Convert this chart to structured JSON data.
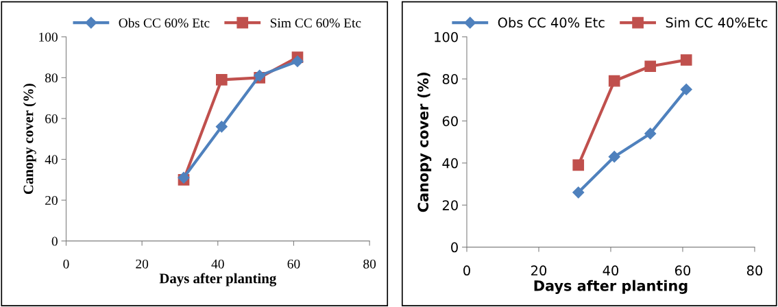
{
  "chart_data": [
    {
      "type": "line",
      "x": [
        31,
        41,
        51,
        61
      ],
      "xlabel": "Days after planting",
      "ylabel": "Canopy cover (%)",
      "xlim": [
        0,
        80
      ],
      "xticks": [
        0,
        20,
        40,
        60,
        80
      ],
      "ylim": [
        0,
        100
      ],
      "yticks": [
        0,
        20,
        40,
        60,
        80,
        100
      ],
      "grid": false,
      "legend": "top",
      "series": [
        {
          "name": "Obs CC 60% Etc",
          "color": "#4f81bd",
          "marker": "diamond",
          "values": [
            31,
            56,
            81,
            88
          ]
        },
        {
          "name": "Sim CC 60% Etc",
          "color": "#c0504d",
          "marker": "square",
          "values": [
            30,
            79,
            80,
            90
          ]
        }
      ]
    },
    {
      "type": "line",
      "x": [
        31,
        41,
        51,
        61
      ],
      "xlabel": "Days after planting",
      "ylabel": "Canopy cover (%)",
      "xlim": [
        0,
        80
      ],
      "xticks": [
        0,
        20,
        40,
        60,
        80
      ],
      "ylim": [
        0,
        100
      ],
      "yticks": [
        0,
        20,
        40,
        60,
        80,
        100
      ],
      "grid": false,
      "legend": "top",
      "series": [
        {
          "name": "Obs CC 40% Etc",
          "color": "#4f81bd",
          "marker": "diamond",
          "values": [
            26,
            43,
            54,
            75
          ]
        },
        {
          "name": "Sim CC 40%Etc",
          "color": "#c0504d",
          "marker": "square",
          "values": [
            39,
            79,
            86,
            89
          ]
        }
      ]
    }
  ]
}
